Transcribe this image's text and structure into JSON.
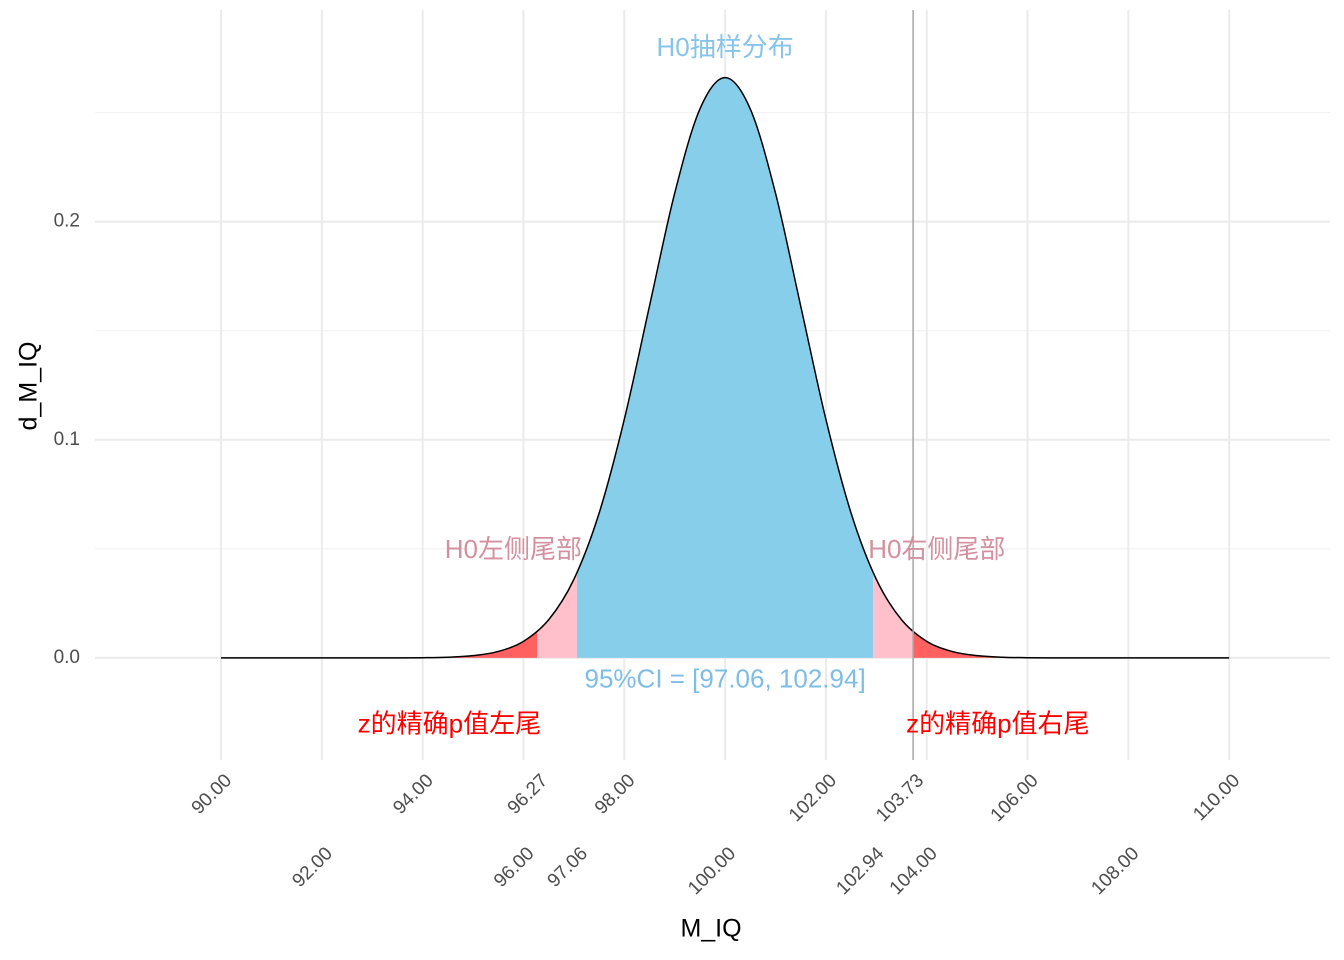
{
  "chart_data": {
    "type": "area",
    "x_label": "M_IQ",
    "y_label": "d_M_IQ",
    "x": [
      90,
      90.5,
      91,
      91.5,
      92,
      92.5,
      93,
      93.5,
      94,
      94.5,
      95,
      95.5,
      96,
      96.5,
      97,
      97.5,
      98,
      98.5,
      99,
      99.5,
      100,
      100.5,
      101,
      101.5,
      102,
      102.5,
      103,
      103.5,
      104,
      104.5,
      105,
      105.5,
      106,
      106.5,
      107,
      107.5,
      108,
      108.5,
      109,
      109.5,
      110
    ],
    "values": [
      0,
      0,
      0,
      0,
      0,
      0,
      0,
      2e-05,
      9e-05,
      0.00032,
      0.00103,
      0.00296,
      0.0076,
      0.01748,
      0.036,
      0.0663,
      0.1093,
      0.1613,
      0.213,
      0.2516,
      0.266,
      0.2516,
      0.213,
      0.1613,
      0.1093,
      0.0663,
      0.036,
      0.01748,
      0.0076,
      0.00296,
      0.00103,
      0.00032,
      9e-05,
      2e-05,
      0,
      0,
      0,
      0,
      0,
      0,
      0
    ],
    "line_color": "#000000",
    "regions": [
      {
        "from": 94.6,
        "to": 96.27,
        "color": "#ff6161"
      },
      {
        "from": 96.27,
        "to": 97.06,
        "color": "#ffc0cb"
      },
      {
        "from": 97.06,
        "to": 102.94,
        "color": "#87ceeb"
      },
      {
        "from": 102.94,
        "to": 103.73,
        "color": "#ffc0cb"
      },
      {
        "from": 103.73,
        "to": 105.4,
        "color": "#ff6161"
      }
    ],
    "vline": {
      "value": 103.73,
      "color": "#a6a6a6"
    },
    "annotations": [
      {
        "text": "H0抽样分布",
        "color": "#87c4ea"
      },
      {
        "text": "H0左侧尾部",
        "color": "#d4909f"
      },
      {
        "text": "H0右侧尾部",
        "color": "#d4909f"
      },
      {
        "text": "95%CI = [97.06, 102.94]",
        "color": "#7dbde6"
      },
      {
        "text": "z的精确p值左尾",
        "color": "#ff0000"
      },
      {
        "text": "z的精确p值右尾",
        "color": "#ff0000"
      }
    ],
    "xlim": [
      87.5,
      112
    ],
    "ylim": [
      -0.0468,
      0.297
    ],
    "xticks": [
      {
        "value": 90,
        "label": "90.00"
      },
      {
        "value": 92,
        "label": "92.00"
      },
      {
        "value": 94,
        "label": "94.00"
      },
      {
        "value": 96,
        "label": "96.00"
      },
      {
        "value": 96.27,
        "label": "96.27"
      },
      {
        "value": 97.06,
        "label": "97.06"
      },
      {
        "value": 98,
        "label": "98.00"
      },
      {
        "value": 100,
        "label": "100.00"
      },
      {
        "value": 102,
        "label": "102.00"
      },
      {
        "value": 102.94,
        "label": "102.94"
      },
      {
        "value": 103.73,
        "label": "103.73"
      },
      {
        "value": 104,
        "label": "104.00"
      },
      {
        "value": 106,
        "label": "106.00"
      },
      {
        "value": 108,
        "label": "108.00"
      },
      {
        "value": 110,
        "label": "110.00"
      }
    ],
    "yticks": [
      {
        "value": 0,
        "label": "0.0"
      },
      0.1,
      0.2
    ],
    "minor_yticks": [
      0.05,
      0.15,
      0.25
    ],
    "grid": true
  }
}
